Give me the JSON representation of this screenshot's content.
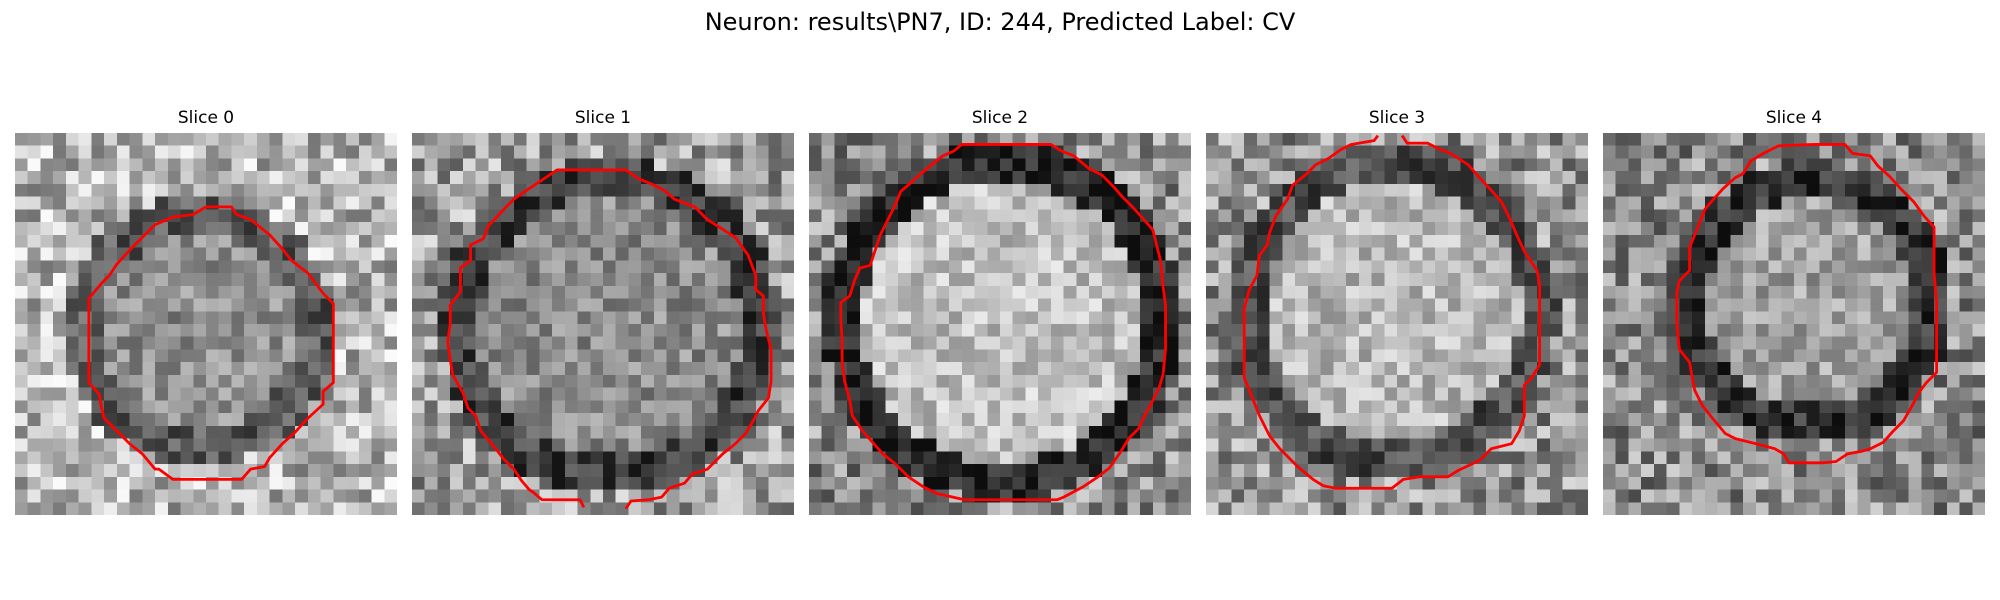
{
  "figure": {
    "title": "Neuron: results\\PN7, ID: 244, Predicted Label: CV",
    "contour_color": "#ff0000"
  },
  "slices": [
    {
      "title": "Slice 0"
    },
    {
      "title": "Slice 1"
    },
    {
      "title": "Slice 2"
    },
    {
      "title": "Slice 3"
    },
    {
      "title": "Slice 4"
    }
  ]
}
